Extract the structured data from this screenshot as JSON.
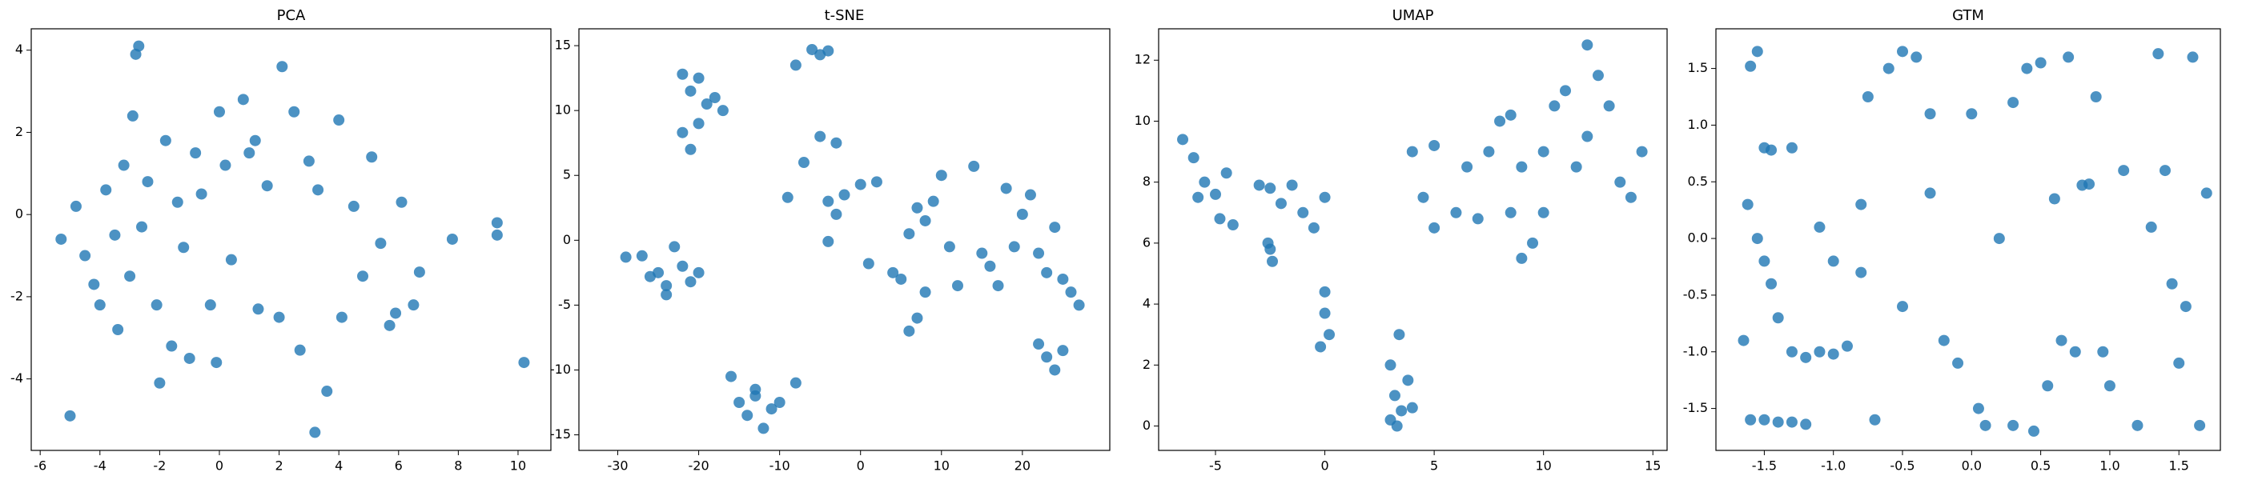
{
  "chart_data": [
    {
      "type": "scatter",
      "title": "PCA",
      "color": "#1f77b4",
      "x": [
        -5,
        10.2,
        3.2,
        9.3,
        9.3,
        7.8,
        6.7,
        6.5,
        -5.3,
        -4.8,
        -4.5,
        -4.2,
        -3.8,
        -3.5,
        -3.2,
        -3,
        -2.9,
        -2.8,
        -2.7,
        -2.6,
        -2.4,
        -2.1,
        -2,
        -1.8,
        -1.6,
        -1.4,
        -1.2,
        -1,
        -0.8,
        -0.6,
        -0.3,
        -0.1,
        0.2,
        0.4,
        0.8,
        1,
        1.3,
        1.6,
        2,
        2.1,
        2.5,
        2.7,
        3,
        3.3,
        3.6,
        4,
        4.1,
        4.5,
        4.8,
        5.1,
        5.4,
        5.7,
        6.1,
        5.9,
        -4,
        -3.4,
        0,
        1.2
      ],
      "y": [
        -4.9,
        -3.6,
        -5.3,
        -0.2,
        -0.5,
        -0.6,
        -1.4,
        -2.2,
        -0.6,
        0.2,
        -1,
        -1.7,
        0.6,
        -0.5,
        1.2,
        -1.5,
        2.4,
        3.9,
        4.1,
        -0.3,
        0.8,
        -2.2,
        -4.1,
        1.8,
        -3.2,
        0.3,
        -0.8,
        -3.5,
        1.5,
        0.5,
        -2.2,
        -3.6,
        1.2,
        -1.1,
        2.8,
        1.5,
        -2.3,
        0.7,
        -2.5,
        3.6,
        2.5,
        -3.3,
        1.3,
        0.6,
        -4.3,
        2.3,
        -2.5,
        0.2,
        -1.5,
        1.4,
        -0.7,
        -2.7,
        0.3,
        -2.4,
        -2.2,
        -2.8,
        2.5,
        1.8
      ],
      "xlim": [
        -6.3,
        11.1
      ],
      "ylim": [
        -5.74,
        4.52
      ],
      "xticks": [
        -6,
        -4,
        -2,
        0,
        2,
        4,
        6,
        8,
        10
      ],
      "yticks": [
        -4,
        -2,
        0,
        2,
        4
      ]
    },
    {
      "type": "scatter",
      "title": "t-SNE",
      "color": "#1f77b4",
      "x": [
        -29,
        -27,
        -25,
        -24,
        -23,
        -22,
        -21,
        -20,
        -24,
        -26,
        -22,
        -21,
        -20,
        -22,
        -20,
        -19,
        -18,
        -17,
        -21,
        -16,
        -15,
        -14,
        -13,
        -12,
        -11,
        -10,
        -8,
        -13,
        -6,
        -5,
        -4,
        -8,
        -7,
        -5,
        -4,
        -3,
        -3,
        -2,
        -4,
        0,
        2,
        -9,
        1,
        4,
        5,
        6,
        6,
        7,
        8,
        7,
        9,
        10,
        8,
        12,
        11,
        14,
        15,
        16,
        17,
        18,
        19,
        20,
        21,
        22,
        23,
        24,
        25,
        26,
        27,
        23,
        24,
        25,
        22
      ],
      "y": [
        -1.3,
        -1.2,
        -2.5,
        -3.5,
        -0.5,
        -2,
        -3.2,
        -2.5,
        -4.2,
        -2.8,
        12.8,
        11.5,
        12.5,
        8.3,
        9,
        10.5,
        11,
        10,
        7,
        -10.5,
        -12.5,
        -13.5,
        -12,
        -14.5,
        -13,
        -12.5,
        -11,
        -11.5,
        14.7,
        14.3,
        14.6,
        13.5,
        6,
        8,
        3,
        2,
        7.5,
        3.5,
        -0.1,
        4.3,
        4.5,
        3.3,
        -1.8,
        -2.5,
        -3,
        0.5,
        -7,
        -6,
        -4,
        2.5,
        3,
        5,
        1.5,
        -3.5,
        -0.5,
        5.7,
        -1,
        -2,
        -3.5,
        4,
        -0.5,
        2,
        3.5,
        -1,
        -2.5,
        1,
        -3,
        -4,
        -5,
        -9,
        -10,
        -8.5,
        -8
      ],
      "xlim": [
        -34.8,
        30.8
      ],
      "ylim": [
        -16.2,
        16.3
      ],
      "xticks": [
        -30,
        -20,
        -10,
        0,
        10,
        20
      ],
      "yticks": [
        -15,
        -10,
        -5,
        0,
        5,
        10,
        15
      ]
    },
    {
      "type": "scatter",
      "title": "UMAP",
      "color": "#1f77b4",
      "x": [
        -6.5,
        -6,
        -5.5,
        -5,
        -4.5,
        -5.8,
        -4.8,
        -4.2,
        -3,
        -2.5,
        -2,
        -1.5,
        -1,
        0,
        -0.5,
        -2.5,
        -2.4,
        -2.6,
        0,
        0,
        0.2,
        -0.2,
        3,
        3.4,
        3.2,
        3.5,
        3,
        4,
        3.8,
        3.3,
        4,
        5,
        4.5,
        5,
        6,
        6.5,
        7,
        7.5,
        8,
        8.5,
        9,
        9.5,
        9,
        10,
        10.5,
        11,
        12,
        12.5,
        13,
        13.5,
        14,
        14.5,
        12,
        11.5,
        10,
        8.5
      ],
      "y": [
        9.4,
        8.8,
        8,
        7.6,
        8.3,
        7.5,
        6.8,
        6.6,
        7.9,
        7.8,
        7.3,
        7.9,
        7,
        7.5,
        6.5,
        5.8,
        5.4,
        6,
        4.4,
        3.7,
        3,
        2.6,
        2,
        3,
        1,
        0.5,
        0.2,
        0.6,
        1.5,
        0,
        9,
        9.2,
        7.5,
        6.5,
        7,
        8.5,
        6.8,
        9,
        10,
        7,
        5.5,
        6,
        8.5,
        9,
        10.5,
        11,
        12.5,
        11.5,
        10.5,
        8,
        7.5,
        9,
        9.5,
        8.5,
        7,
        10.2
      ],
      "xlim": [
        -7.6,
        15.65
      ],
      "ylim": [
        -0.8,
        13.03
      ],
      "xticks": [
        -5,
        0,
        5,
        10,
        15
      ],
      "yticks": [
        0,
        2,
        4,
        6,
        8,
        10,
        12
      ]
    },
    {
      "type": "scatter",
      "title": "GTM",
      "color": "#1f77b4",
      "x": [
        -1.6,
        -1.55,
        -1.5,
        -1.45,
        -1.3,
        -1.62,
        -1.55,
        -1.5,
        -1.45,
        -1.65,
        -1.4,
        -1.6,
        -1.5,
        -1.4,
        -1.3,
        -1.2,
        -1.3,
        -1.2,
        -1.1,
        -1.0,
        -0.9,
        -1.1,
        -1.0,
        -0.8,
        -0.8,
        -0.75,
        -0.7,
        -0.6,
        -0.5,
        -0.4,
        -0.3,
        -0.3,
        -0.5,
        -0.2,
        -0.1,
        0,
        0.05,
        0.1,
        0.2,
        0.3,
        0.3,
        0.4,
        0.45,
        0.5,
        0.55,
        0.6,
        0.65,
        0.7,
        0.75,
        0.8,
        0.85,
        0.9,
        0.95,
        1.0,
        1.1,
        1.2,
        1.3,
        1.35,
        1.4,
        1.45,
        1.5,
        1.55,
        1.6,
        1.65,
        1.7
      ],
      "y": [
        1.52,
        1.65,
        0.8,
        0.78,
        0.8,
        0.3,
        0,
        -0.2,
        -0.4,
        -0.9,
        -0.7,
        -1.6,
        -1.6,
        -1.62,
        -1.62,
        -1.64,
        -1,
        -1.05,
        -1,
        -1.02,
        -0.95,
        0.1,
        -0.2,
        -0.3,
        0.3,
        1.25,
        -1.6,
        1.5,
        1.65,
        1.6,
        1.1,
        0.4,
        -0.6,
        -0.9,
        -1.1,
        1.1,
        -1.5,
        -1.65,
        0,
        1.2,
        -1.65,
        1.5,
        -1.7,
        1.55,
        -1.3,
        0.35,
        -0.9,
        1.6,
        -1.0,
        0.47,
        0.48,
        1.25,
        -1.0,
        -1.3,
        0.6,
        -1.65,
        0.1,
        1.63,
        0.6,
        -0.4,
        -1.1,
        -0.6,
        1.6,
        -1.65,
        0.4
      ],
      "xlim": [
        -1.85,
        1.8
      ],
      "ylim": [
        -1.87,
        1.85
      ],
      "xticks": [
        -1.5,
        {
          "value": -1,
          "label": "-1.0"
        },
        -0.5,
        {
          "value": 0,
          "label": "0.0"
        },
        0.5,
        {
          "value": 1,
          "label": "1.0"
        },
        1.5
      ],
      "yticks": [
        -1.5,
        {
          "value": -1,
          "label": "-1.0"
        },
        -0.5,
        {
          "value": 0,
          "label": "0.0"
        },
        0.5,
        {
          "value": 1,
          "label": "1.0"
        },
        1.5
      ]
    }
  ]
}
